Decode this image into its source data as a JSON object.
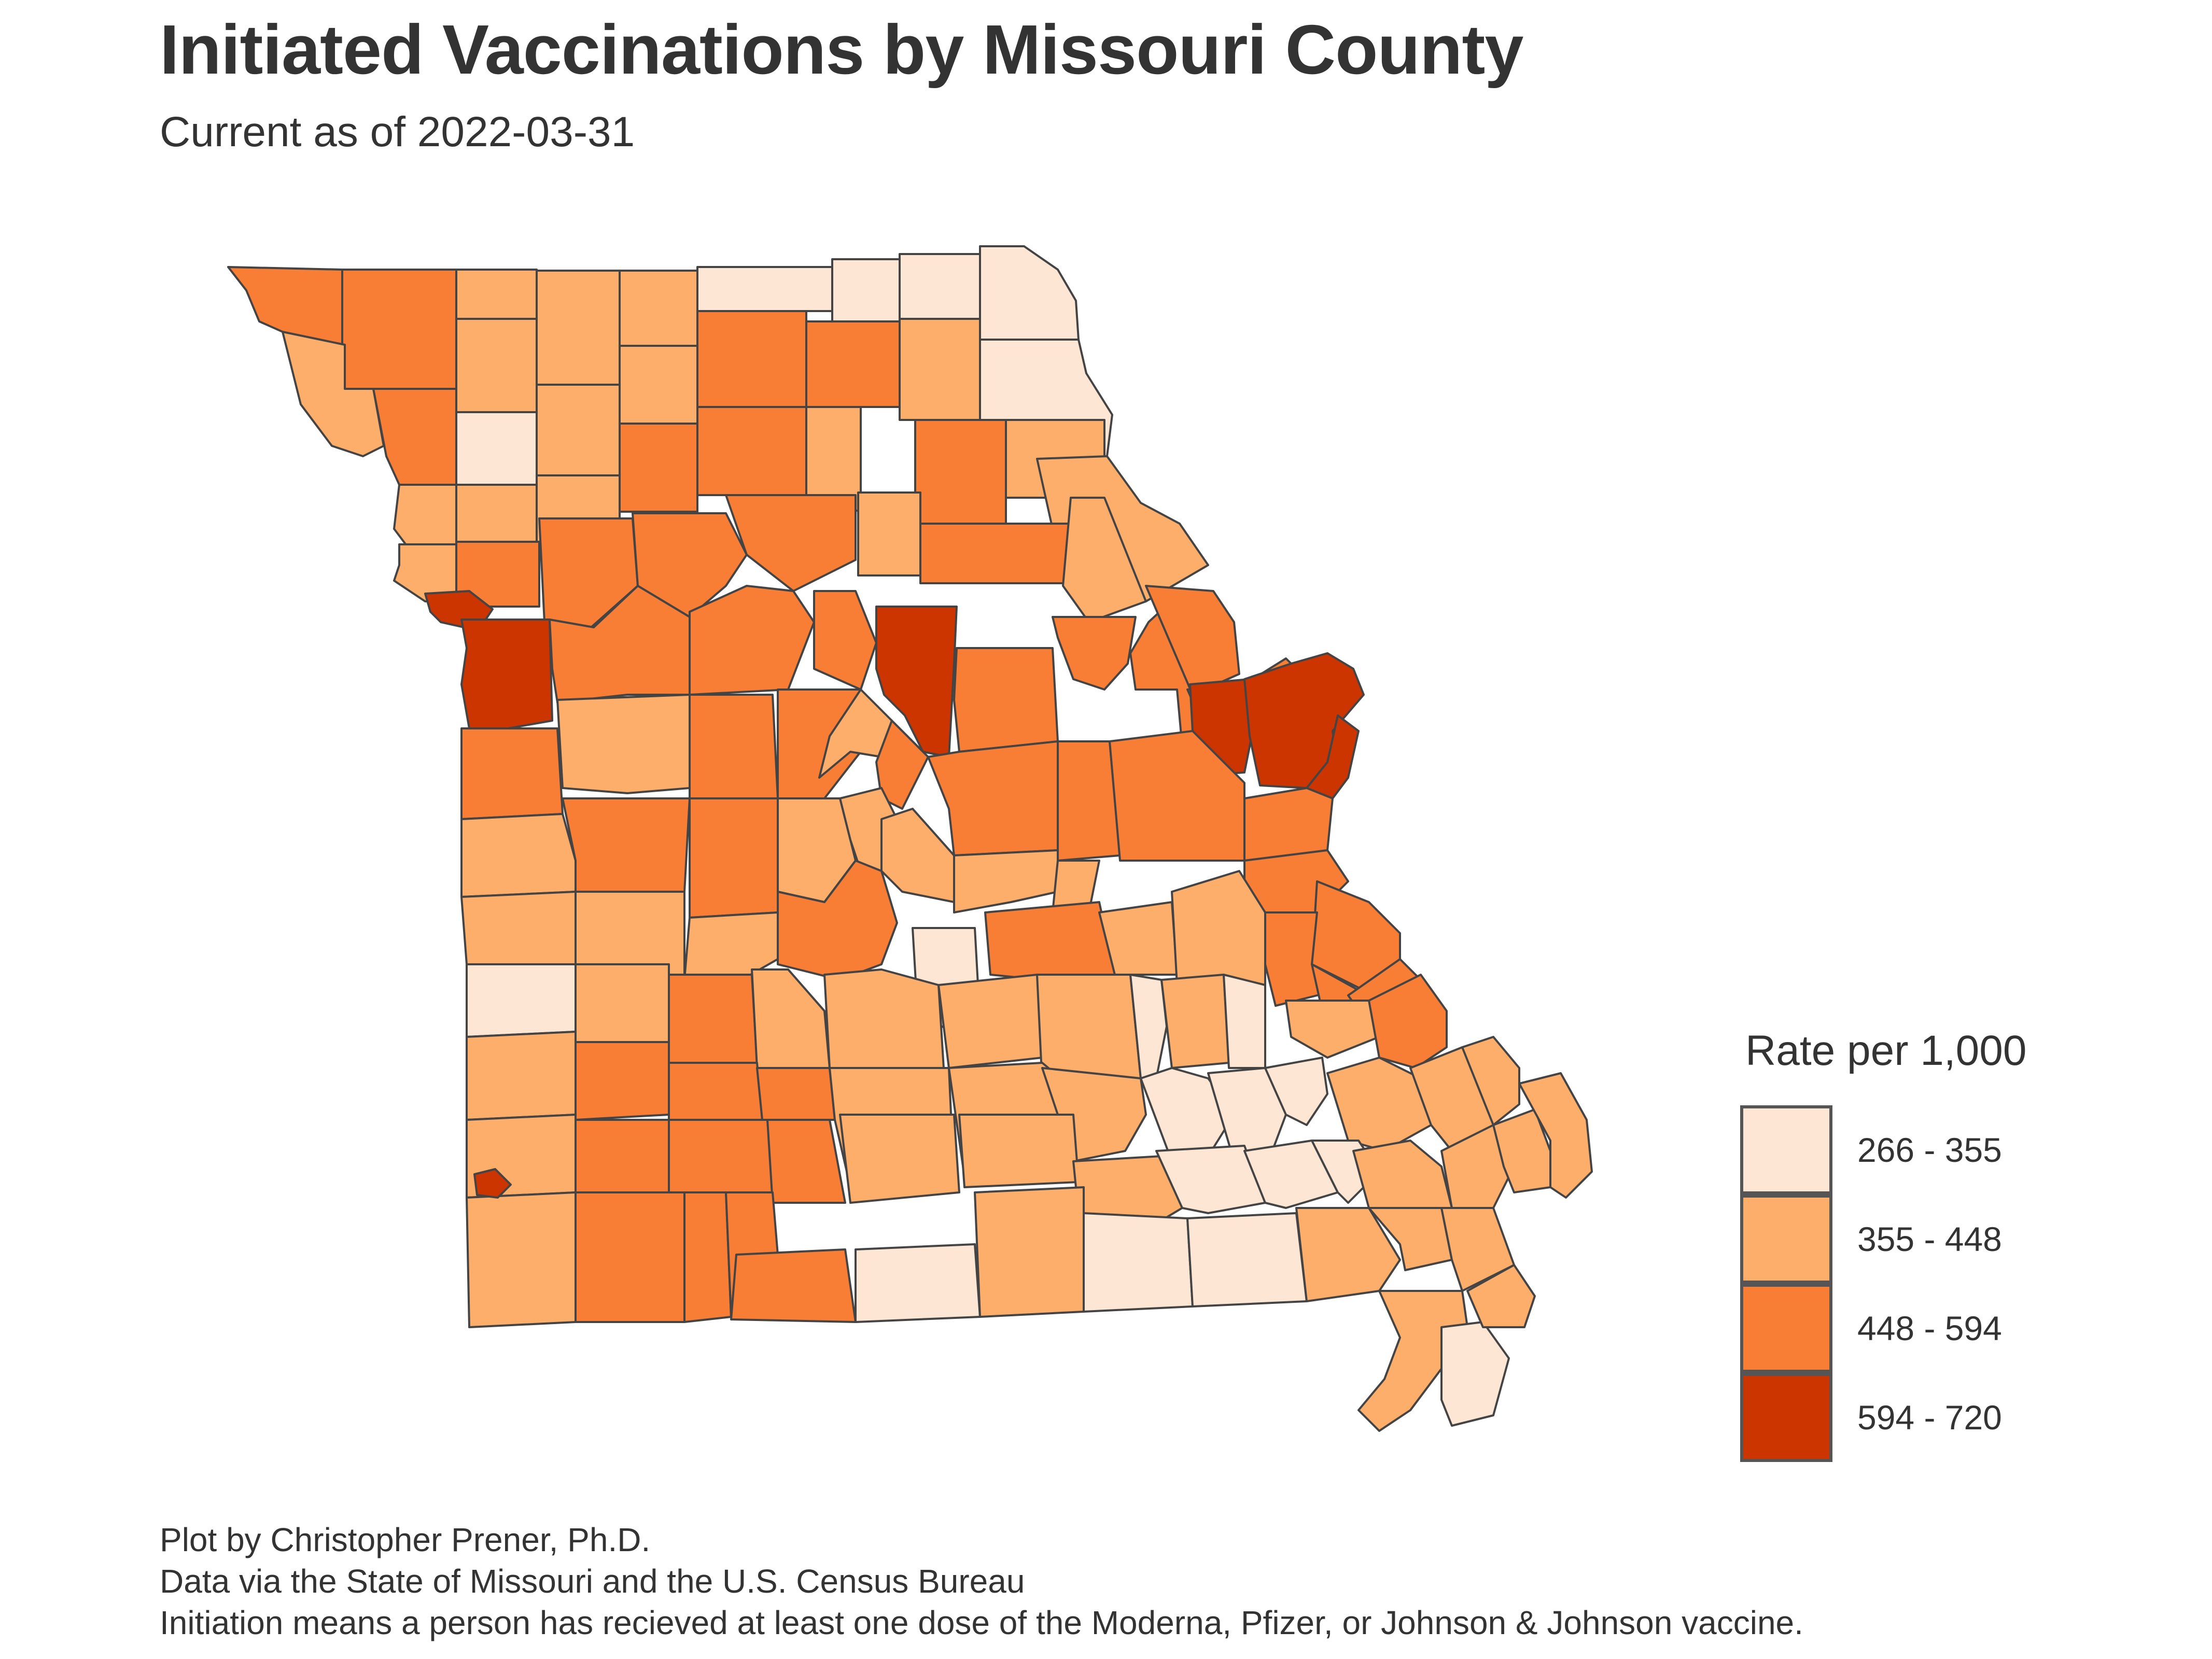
{
  "title": "Initiated Vaccinations by Missouri County",
  "subtitle": "Current as of 2022-03-31",
  "legend": {
    "title": "Rate per 1,000",
    "bins": [
      {
        "label": "266 - 355",
        "color": "#fee6d5"
      },
      {
        "label": "355 - 448",
        "color": "#fdae6b"
      },
      {
        "label": "448 - 594",
        "color": "#f87d35"
      },
      {
        "label": "594 - 720",
        "color": "#cc3500"
      }
    ]
  },
  "caption": {
    "line1": "Plot by Christopher Prener, Ph.D.",
    "line2": "Data via the State of Missouri and the U.S. Census Bureau",
    "line3": "Initiation means a person has recieved at least one dose of the Moderna, Pfizer, or Johnson & Johnson vaccine."
  },
  "map": {
    "border_color": "#444444",
    "fill_levels": [
      "#fee6d5",
      "#fdae6b",
      "#f87d35",
      "#cc3500"
    ]
  }
}
